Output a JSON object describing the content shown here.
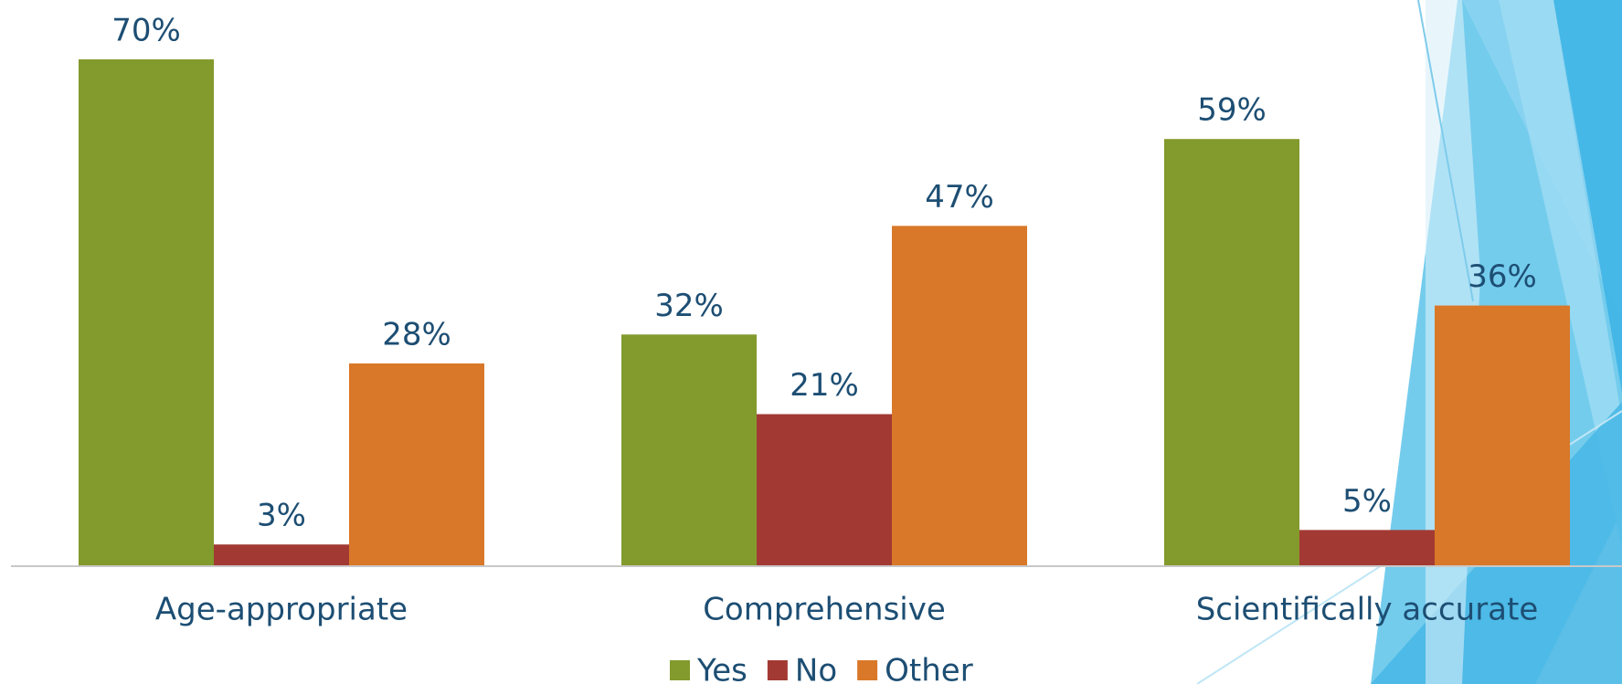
{
  "chart_data": {
    "type": "bar",
    "categories": [
      "Age-appropriate",
      "Comprehensive",
      "Scientifically accurate"
    ],
    "series": [
      {
        "name": "Yes",
        "color": "#839a2c",
        "values": [
          70,
          32,
          59
        ],
        "value_labels": [
          "70%",
          "32%",
          "59%"
        ]
      },
      {
        "name": "No",
        "color": "#a23a33",
        "values": [
          3,
          21,
          5
        ],
        "value_labels": [
          "3%",
          "21%",
          "5%"
        ]
      },
      {
        "name": "Other",
        "color": "#d97828",
        "values": [
          28,
          47,
          36
        ],
        "value_labels": [
          "28%",
          "47%",
          "36%"
        ]
      }
    ],
    "legend": "bottom"
  }
}
